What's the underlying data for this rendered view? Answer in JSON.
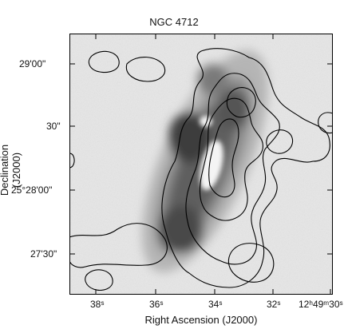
{
  "figure": {
    "title": "NGC 4712",
    "xlabel": "Right Ascension (J2000)",
    "ylabel": "Declination (J2000)",
    "x_ticks": [
      "38ˢ",
      "36ˢ",
      "34ˢ",
      "32ˢ",
      "12ʰ49ᵐ30ˢ"
    ],
    "y_ticks": [
      "29'00\"",
      "30\"",
      "25°28'00\"",
      "27'30\""
    ]
  }
}
